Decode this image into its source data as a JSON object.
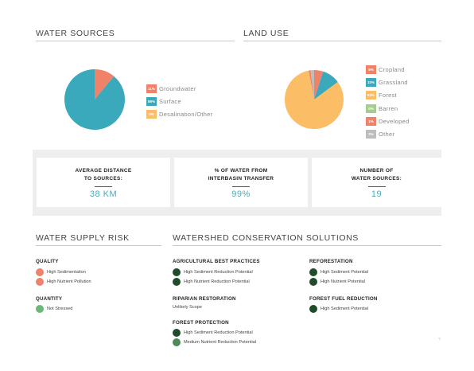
{
  "water_sources": {
    "title": "WATER SOURCES",
    "legend": [
      {
        "pct": "11%",
        "label": "Groundwater",
        "color": "#f0826a"
      },
      {
        "pct": "89%",
        "label": "Surface",
        "color": "#3aa9bc"
      },
      {
        "pct": "0%",
        "label": "Desalination/Other",
        "color": "#fbbd66"
      }
    ]
  },
  "land_use": {
    "title": "LAND USE",
    "legend": [
      {
        "pct": "5%",
        "label": "Cropland",
        "color": "#f0826a"
      },
      {
        "pct": "10%",
        "label": "Grassland",
        "color": "#3aa9bc"
      },
      {
        "pct": "83%",
        "label": "Forest",
        "color": "#fbbd66"
      },
      {
        "pct": "0%",
        "label": "Barren",
        "color": "#a6cc92"
      },
      {
        "pct": "1%",
        "label": "Developed",
        "color": "#f0826a"
      },
      {
        "pct": "2%",
        "label": "Other",
        "color": "#bdbdbd"
      }
    ]
  },
  "stats": [
    {
      "title": "AVERAGE DISTANCE\nTO SOURCES:",
      "value": "38 KM"
    },
    {
      "title": "% OF WATER FROM\nINTERBASIN TRANSFER",
      "value": "99%"
    },
    {
      "title": "NUMBER OF\nWATER SOURCES:",
      "value": "19"
    }
  ],
  "water_supply_risk": {
    "title": "WATER SUPPLY RISK",
    "quality": {
      "title": "QUALITY",
      "items": [
        "High Sedimentation",
        "High Nutrient Pollution"
      ]
    },
    "quantity": {
      "title": "QUANTITY",
      "items": [
        "Not Stressed"
      ]
    }
  },
  "watershed": {
    "title": "WATERSHED CONSERVATION SOLUTIONS",
    "agricultural": {
      "title": "AGRICULTURAL BEST PRACTICES",
      "items": [
        "High Sediment Reduction Potential",
        "High Nutrient Reduction Potential"
      ]
    },
    "riparian": {
      "title": "RIPARIAN RESTORATION",
      "note": "Unlikely Scope"
    },
    "forest_protection": {
      "title": "FOREST PROTECTION",
      "items": [
        "High Sediment Reduction Potential",
        "Medium Nutrient Reduction Potential"
      ]
    },
    "reforestation": {
      "title": "REFORESTATION",
      "items": [
        "High Sediment Potential",
        "High Nutrient Potential"
      ]
    },
    "forest_fuel": {
      "title": "FOREST FUEL REDUCTION",
      "items": [
        "High Sediment Potential"
      ]
    }
  },
  "footer": {
    "mark": "?"
  },
  "colors": {
    "risk_high": "#f0826a",
    "risk_low": "#6bb879",
    "solution_high": "#1f4d2a",
    "solution_medium": "#4e8a55",
    "accent": "#3aa9bc"
  }
}
